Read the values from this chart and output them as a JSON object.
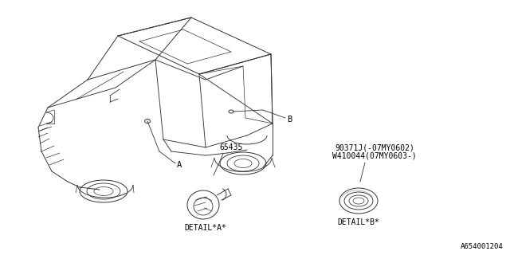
{
  "bg_color": "#ffffff",
  "line_color": "#000000",
  "text_color": "#000000",
  "part_number_A": "65435",
  "part_number_B_line1": "90371J(-07MY0602)",
  "part_number_B_line2": "W410044(07MY0603-)",
  "label_A": "A",
  "label_B": "B",
  "detail_A": "DETAIL*A*",
  "detail_B": "DETAIL*B*",
  "diagram_id": "A654001204",
  "font_size_parts": 7.0,
  "font_size_labels": 7.5,
  "font_size_detail": 7.0,
  "font_size_id": 6.5
}
